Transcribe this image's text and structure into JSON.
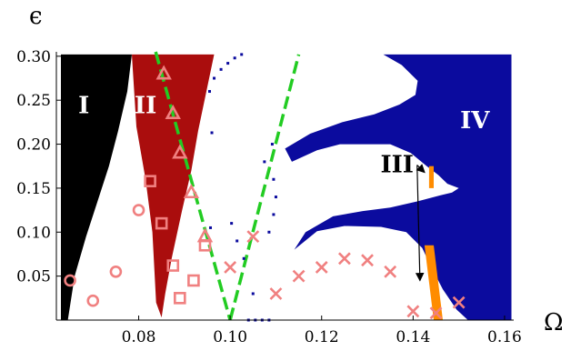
{
  "chart_data": {
    "type": "scatter",
    "title": "",
    "xlabel": "Ω",
    "ylabel": "ϵ",
    "xlim": [
      0.062,
      0.162
    ],
    "ylim": [
      0.0,
      0.305
    ],
    "grid": false,
    "xticks": [
      0.08,
      0.1,
      0.12,
      0.14,
      0.16
    ],
    "xtick_labels": [
      "0.08",
      "0.10",
      "0.12",
      "0.14",
      "0.16"
    ],
    "yticks": [
      0.05,
      0.1,
      0.15,
      0.2,
      0.25,
      0.3
    ],
    "ytick_labels": [
      "0.05",
      "0.10",
      "0.15",
      "0.20",
      "0.25",
      "0.30"
    ],
    "regions": [
      {
        "label": "I",
        "color": "#000000",
        "label_color": "#ffffff",
        "label_at": [
          0.068,
          0.235
        ],
        "polygon": [
          [
            0.063,
            0.0
          ],
          [
            0.063,
            0.302
          ],
          [
            0.0785,
            0.302
          ],
          [
            0.0775,
            0.26
          ],
          [
            0.0755,
            0.215
          ],
          [
            0.0735,
            0.175
          ],
          [
            0.071,
            0.135
          ],
          [
            0.0685,
            0.095
          ],
          [
            0.066,
            0.05
          ],
          [
            0.0645,
            0.0
          ]
        ]
      },
      {
        "label": "II",
        "color": "#aa0d0d",
        "label_color": "#ffffff",
        "label_at": [
          0.0815,
          0.235
        ],
        "polygon": [
          [
            0.0785,
            0.302
          ],
          [
            0.0965,
            0.302
          ],
          [
            0.0948,
            0.26
          ],
          [
            0.093,
            0.215
          ],
          [
            0.0915,
            0.17
          ],
          [
            0.0895,
            0.125
          ],
          [
            0.0872,
            0.07
          ],
          [
            0.0858,
            0.03
          ],
          [
            0.085,
            0.003
          ],
          [
            0.0838,
            0.02
          ],
          [
            0.083,
            0.1
          ],
          [
            0.0815,
            0.16
          ],
          [
            0.0795,
            0.22
          ]
        ]
      },
      {
        "label": "IV",
        "color": "#0b0b9e",
        "label_color": "#ffffff",
        "label_at": [
          0.1535,
          0.218
        ],
        "polygon": [
          [
            0.1335,
            0.302
          ],
          [
            0.1615,
            0.302
          ],
          [
            0.1615,
            0.0
          ],
          [
            0.152,
            0.0
          ],
          [
            0.1495,
            0.012
          ],
          [
            0.1465,
            0.035
          ],
          [
            0.144,
            0.06
          ],
          [
            0.142,
            0.082
          ],
          [
            0.1385,
            0.1
          ],
          [
            0.133,
            0.106
          ],
          [
            0.125,
            0.107
          ],
          [
            0.119,
            0.101
          ],
          [
            0.114,
            0.08
          ],
          [
            0.1165,
            0.1
          ],
          [
            0.1225,
            0.118
          ],
          [
            0.129,
            0.124
          ],
          [
            0.135,
            0.128
          ],
          [
            0.141,
            0.135
          ],
          [
            0.146,
            0.142
          ],
          [
            0.1485,
            0.145
          ],
          [
            0.15,
            0.15
          ],
          [
            0.1475,
            0.155
          ],
          [
            0.1455,
            0.165
          ],
          [
            0.143,
            0.175
          ],
          [
            0.1395,
            0.19
          ],
          [
            0.135,
            0.2
          ],
          [
            0.13,
            0.2
          ],
          [
            0.124,
            0.2
          ],
          [
            0.119,
            0.193
          ],
          [
            0.1135,
            0.18
          ],
          [
            0.112,
            0.195
          ],
          [
            0.1175,
            0.212
          ],
          [
            0.1245,
            0.225
          ],
          [
            0.1315,
            0.234
          ],
          [
            0.137,
            0.245
          ],
          [
            0.1405,
            0.256
          ],
          [
            0.141,
            0.272
          ],
          [
            0.1375,
            0.29
          ]
        ]
      },
      {
        "label": "III",
        "color": "#ff8c00",
        "label_color": "#000000",
        "label_at": [
          0.1365,
          0.168
        ],
        "polygon": [
          [
            0.1435,
            0.175
          ],
          [
            0.1445,
            0.175
          ],
          [
            0.1445,
            0.15
          ],
          [
            0.1435,
            0.15
          ]
        ]
      },
      {
        "label": "",
        "color": "#ff8c00",
        "label_color": "#000000",
        "label_at": null,
        "polygon": [
          [
            0.1425,
            0.085
          ],
          [
            0.1445,
            0.085
          ],
          [
            0.1465,
            0.0
          ],
          [
            0.1445,
            0.0
          ]
        ]
      }
    ],
    "arrow_from": [
      0.1365,
      0.168
    ],
    "arrow_targets": [
      [
        0.1425,
        0.168
      ],
      [
        0.1415,
        0.045
      ]
    ],
    "series": [
      {
        "marker": "triangle",
        "color": "#f08080",
        "x": [
          0.0855,
          0.0875,
          0.089,
          0.0915,
          0.0945
        ],
        "y": [
          0.28,
          0.235,
          0.19,
          0.145,
          0.095
        ]
      },
      {
        "marker": "square",
        "color": "#f08080",
        "x": [
          0.0825,
          0.085,
          0.0875,
          0.089,
          0.092,
          0.0945
        ],
        "y": [
          0.158,
          0.11,
          0.062,
          0.025,
          0.045,
          0.085
        ]
      },
      {
        "marker": "circle",
        "color": "#f08080",
        "x": [
          0.065,
          0.07,
          0.075,
          0.08
        ],
        "y": [
          0.045,
          0.022,
          0.055,
          0.125
        ]
      },
      {
        "marker": "x",
        "color": "#f08080",
        "x": [
          0.1,
          0.105,
          0.11,
          0.115,
          0.12,
          0.125,
          0.13,
          0.135,
          0.14,
          0.145,
          0.15
        ],
        "y": [
          0.06,
          0.095,
          0.03,
          0.05,
          0.06,
          0.07,
          0.068,
          0.055,
          0.01,
          0.008,
          0.02
        ]
      }
    ],
    "lines": [
      {
        "style": "dashed",
        "color": "#22cc22",
        "x": [
          0.0837,
          0.1
        ],
        "y": [
          0.305,
          0.0
        ]
      },
      {
        "style": "dashed",
        "color": "#22cc22",
        "x": [
          0.1,
          0.115
        ],
        "y": [
          0.0,
          0.302
        ]
      }
    ],
    "scattered_dots": {
      "color": "#0b0b9e",
      "x": [
        0.0955,
        0.0965,
        0.098,
        0.0995,
        0.101,
        0.1025,
        0.104,
        0.1055,
        0.107,
        0.1085,
        0.1092,
        0.1075,
        0.1095,
        0.11,
        0.1095,
        0.1085,
        0.105,
        0.103,
        0.1015,
        0.1003,
        0.096,
        0.0957
      ],
      "y": [
        0.26,
        0.275,
        0.285,
        0.292,
        0.298,
        0.302,
        0.0,
        0.0,
        0.0,
        0.0,
        0.2,
        0.18,
        0.16,
        0.14,
        0.12,
        0.1,
        0.03,
        0.07,
        0.09,
        0.11,
        0.213,
        0.105
      ]
    }
  }
}
